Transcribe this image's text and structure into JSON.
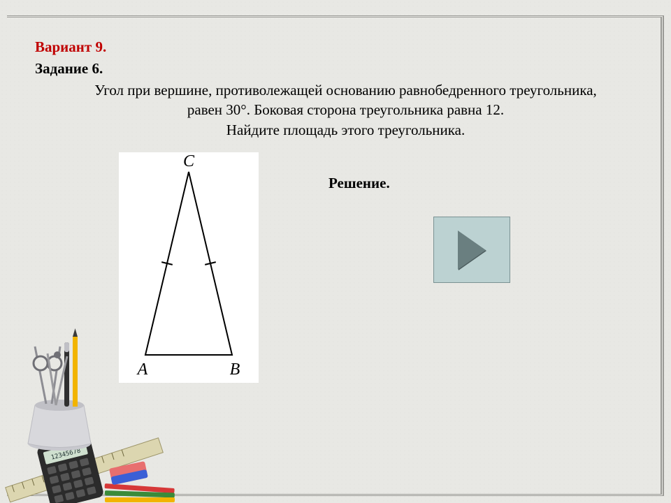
{
  "header": {
    "variant": "Вариант 9.",
    "task": "Задание 6."
  },
  "problem": {
    "line1": "Угол при вершине, противолежащей основанию равнобедренного треугольника,",
    "line2": "равен 30°. Боковая сторона треугольника равна 12.",
    "line3": "Найдите площадь этого треугольника."
  },
  "solution_label": "Решение.",
  "triangle": {
    "vertices": {
      "top": "C",
      "bottom_left": "A",
      "bottom_right": "B"
    },
    "points": {
      "C": [
        100,
        28
      ],
      "A": [
        38,
        290
      ],
      "B": [
        162,
        290
      ]
    },
    "label_fontsize": 24,
    "stroke": "#000000",
    "stroke_width": 2,
    "tick_len": 8,
    "background": "#ffffff"
  },
  "play_button": {
    "bg": "#bcd2d2",
    "border": "#7b9293",
    "arrow": "#6a7f80"
  },
  "colors": {
    "variant": "#c00000",
    "text": "#000000",
    "page_bg": "#e8e8e4",
    "frame_border": "#9a9a96"
  },
  "typography": {
    "family": "Times New Roman",
    "heading_size": 21,
    "body_size": 21
  },
  "stationery": {
    "cup": "#d8d8dc",
    "scissors": "#a8a8ae",
    "pencil_yellow": "#f2b400",
    "pencil_red": "#d63838",
    "pencil_green": "#3a8b3a",
    "calculator_body": "#2b2b2b",
    "calculator_screen": "#cfe0cf",
    "eraser_pink": "#e86f6f",
    "eraser_blue": "#3b5fd6",
    "ruler": "#dcd6b0"
  }
}
